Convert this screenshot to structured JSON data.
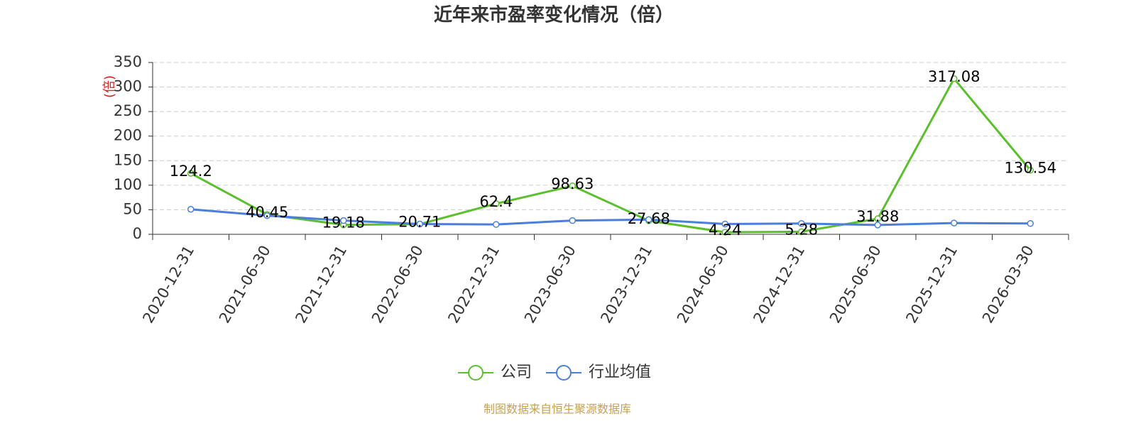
{
  "chart_data": {
    "type": "line",
    "title": "近年来市盈率变化情况（倍）",
    "y_label": "(倍)",
    "source": "制图数据来自恒生聚源数据库",
    "categories": [
      "2020-12-31",
      "2021-06-30",
      "2021-12-31",
      "2022-06-30",
      "2022-12-31",
      "2023-06-30",
      "2023-12-31",
      "2024-06-30",
      "2024-12-31",
      "2025-06-30",
      "2025-12-31",
      "2026-03-30"
    ],
    "series": [
      {
        "name": "公司",
        "color": "#5bc02c",
        "values": [
          124.2,
          40.45,
          19.18,
          20.71,
          62.4,
          98.63,
          27.68,
          4.24,
          5.28,
          31.88,
          317.08,
          130.54
        ]
      },
      {
        "name": "行业均值",
        "color": "#4a7fdc",
        "values": [
          51,
          38,
          28,
          21,
          20,
          28,
          30,
          21,
          22,
          19,
          23,
          22
        ]
      }
    ],
    "ylim": [
      0,
      350
    ],
    "yticks": [
      0,
      50,
      100,
      150,
      200,
      250,
      300,
      350
    ],
    "grid": true,
    "legend": "bottom"
  }
}
